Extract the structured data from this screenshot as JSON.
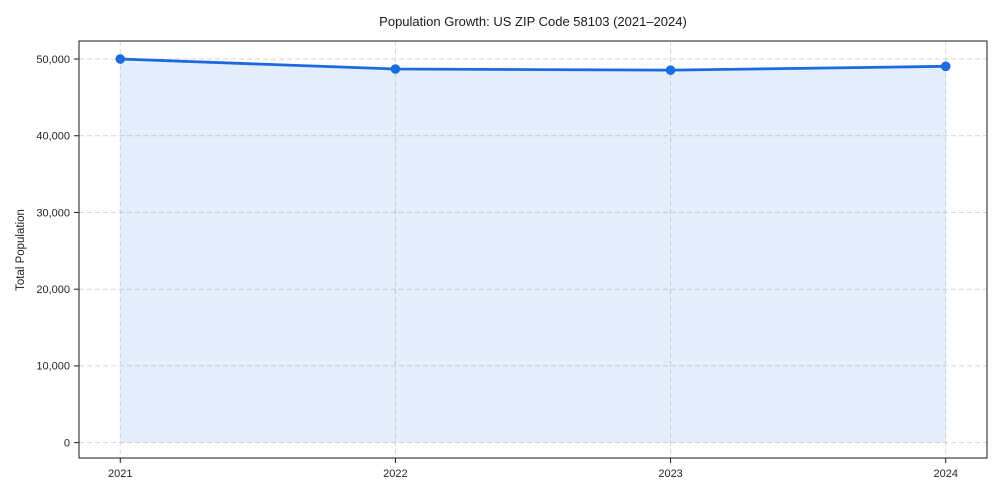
{
  "chart_data": {
    "type": "area",
    "title": "Population Growth: US ZIP Code 58103 (2021–2024)",
    "xlabel": "",
    "ylabel": "Total Population",
    "x": [
      2021,
      2022,
      2023,
      2024
    ],
    "xtick_labels": [
      "2021",
      "2022",
      "2023",
      "2024"
    ],
    "series": [
      {
        "name": "Total Population",
        "values": [
          50000,
          48700,
          48550,
          49050
        ]
      }
    ],
    "yticks": [
      0,
      10000,
      20000,
      30000,
      40000,
      50000
    ],
    "ytick_labels": [
      "0",
      "10,000",
      "20,000",
      "30,000",
      "40,000",
      "50,000"
    ],
    "xlim": [
      2020.85,
      2024.15
    ],
    "ylim": [
      -2000,
      52350
    ],
    "grid": true,
    "grid_style": "dashed",
    "legend": "none",
    "colors": {
      "line": "#1b6ae0",
      "marker": "#1b6ae0",
      "fill": "#1b6ae0",
      "fill_opacity": 0.12,
      "grid": "#d6d6d6",
      "spine": "#1a1a1a",
      "text": "#262626",
      "background": "#ffffff"
    }
  }
}
